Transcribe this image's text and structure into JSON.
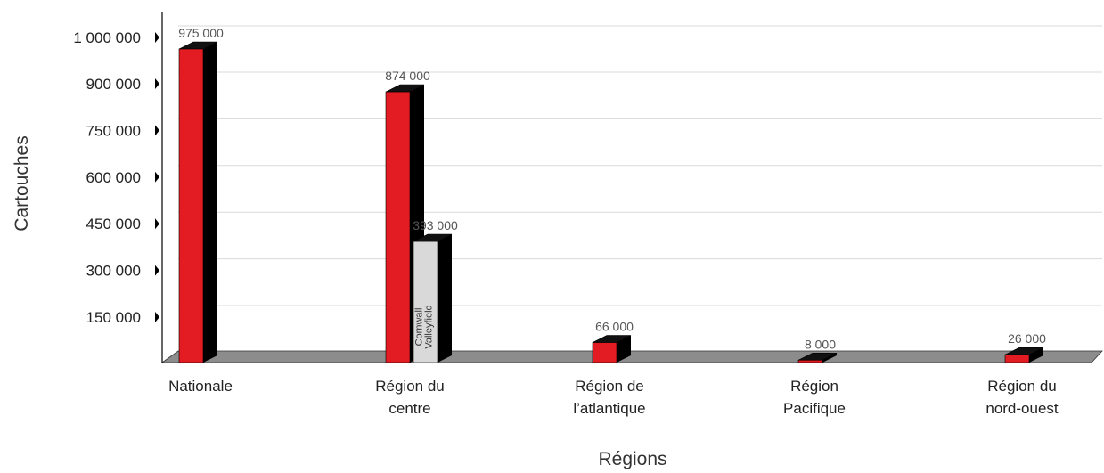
{
  "chart_data": {
    "type": "bar",
    "title": "",
    "xlabel": "Régions",
    "ylabel": "Cartouches",
    "ylim": [
      0,
      1000000
    ],
    "grid": true,
    "y_ticks": [
      {
        "value": 150000,
        "label": "150 000"
      },
      {
        "value": 300000,
        "label": "300 000"
      },
      {
        "value": 450000,
        "label": "450 000"
      },
      {
        "value": 600000,
        "label": "600 000"
      },
      {
        "value": 750000,
        "label": "750 000"
      },
      {
        "value": 900000,
        "label": "900 000"
      },
      {
        "value": 1000000,
        "label": "1 000 000"
      }
    ],
    "categories": [
      [
        "Nationale"
      ],
      [
        "Région du",
        "centre"
      ],
      [
        "Région de",
        "l’atlantique"
      ],
      [
        "Région",
        "Pacifique"
      ],
      [
        "Région du",
        "nord-ouest"
      ]
    ],
    "bars": [
      {
        "category": 0,
        "value": 975000,
        "label": "975 000",
        "color": "#e31b23",
        "inner_text": []
      },
      {
        "category": 1,
        "value": 874000,
        "label": "874 000",
        "color": "#e31b23",
        "inner_text": []
      },
      {
        "category": 1,
        "value": 393000,
        "label": "393 000",
        "color": "#d9d9d9",
        "inner_text": [
          "Cornwall",
          "Valleyfield"
        ]
      },
      {
        "category": 2,
        "value": 66000,
        "label": "66 000",
        "color": "#e31b23",
        "inner_text": []
      },
      {
        "category": 3,
        "value": 8000,
        "label": "8 000",
        "color": "#e31b23",
        "inner_text": []
      },
      {
        "category": 4,
        "value": 26000,
        "label": "26 000",
        "color": "#e31b23",
        "inner_text": []
      }
    ],
    "colors": {
      "bar_red": "#e31b23",
      "bar_grey": "#d9d9d9",
      "bar_side": "#000000",
      "floor": "#8c8c8c",
      "grid": "#d9d9d9"
    }
  }
}
